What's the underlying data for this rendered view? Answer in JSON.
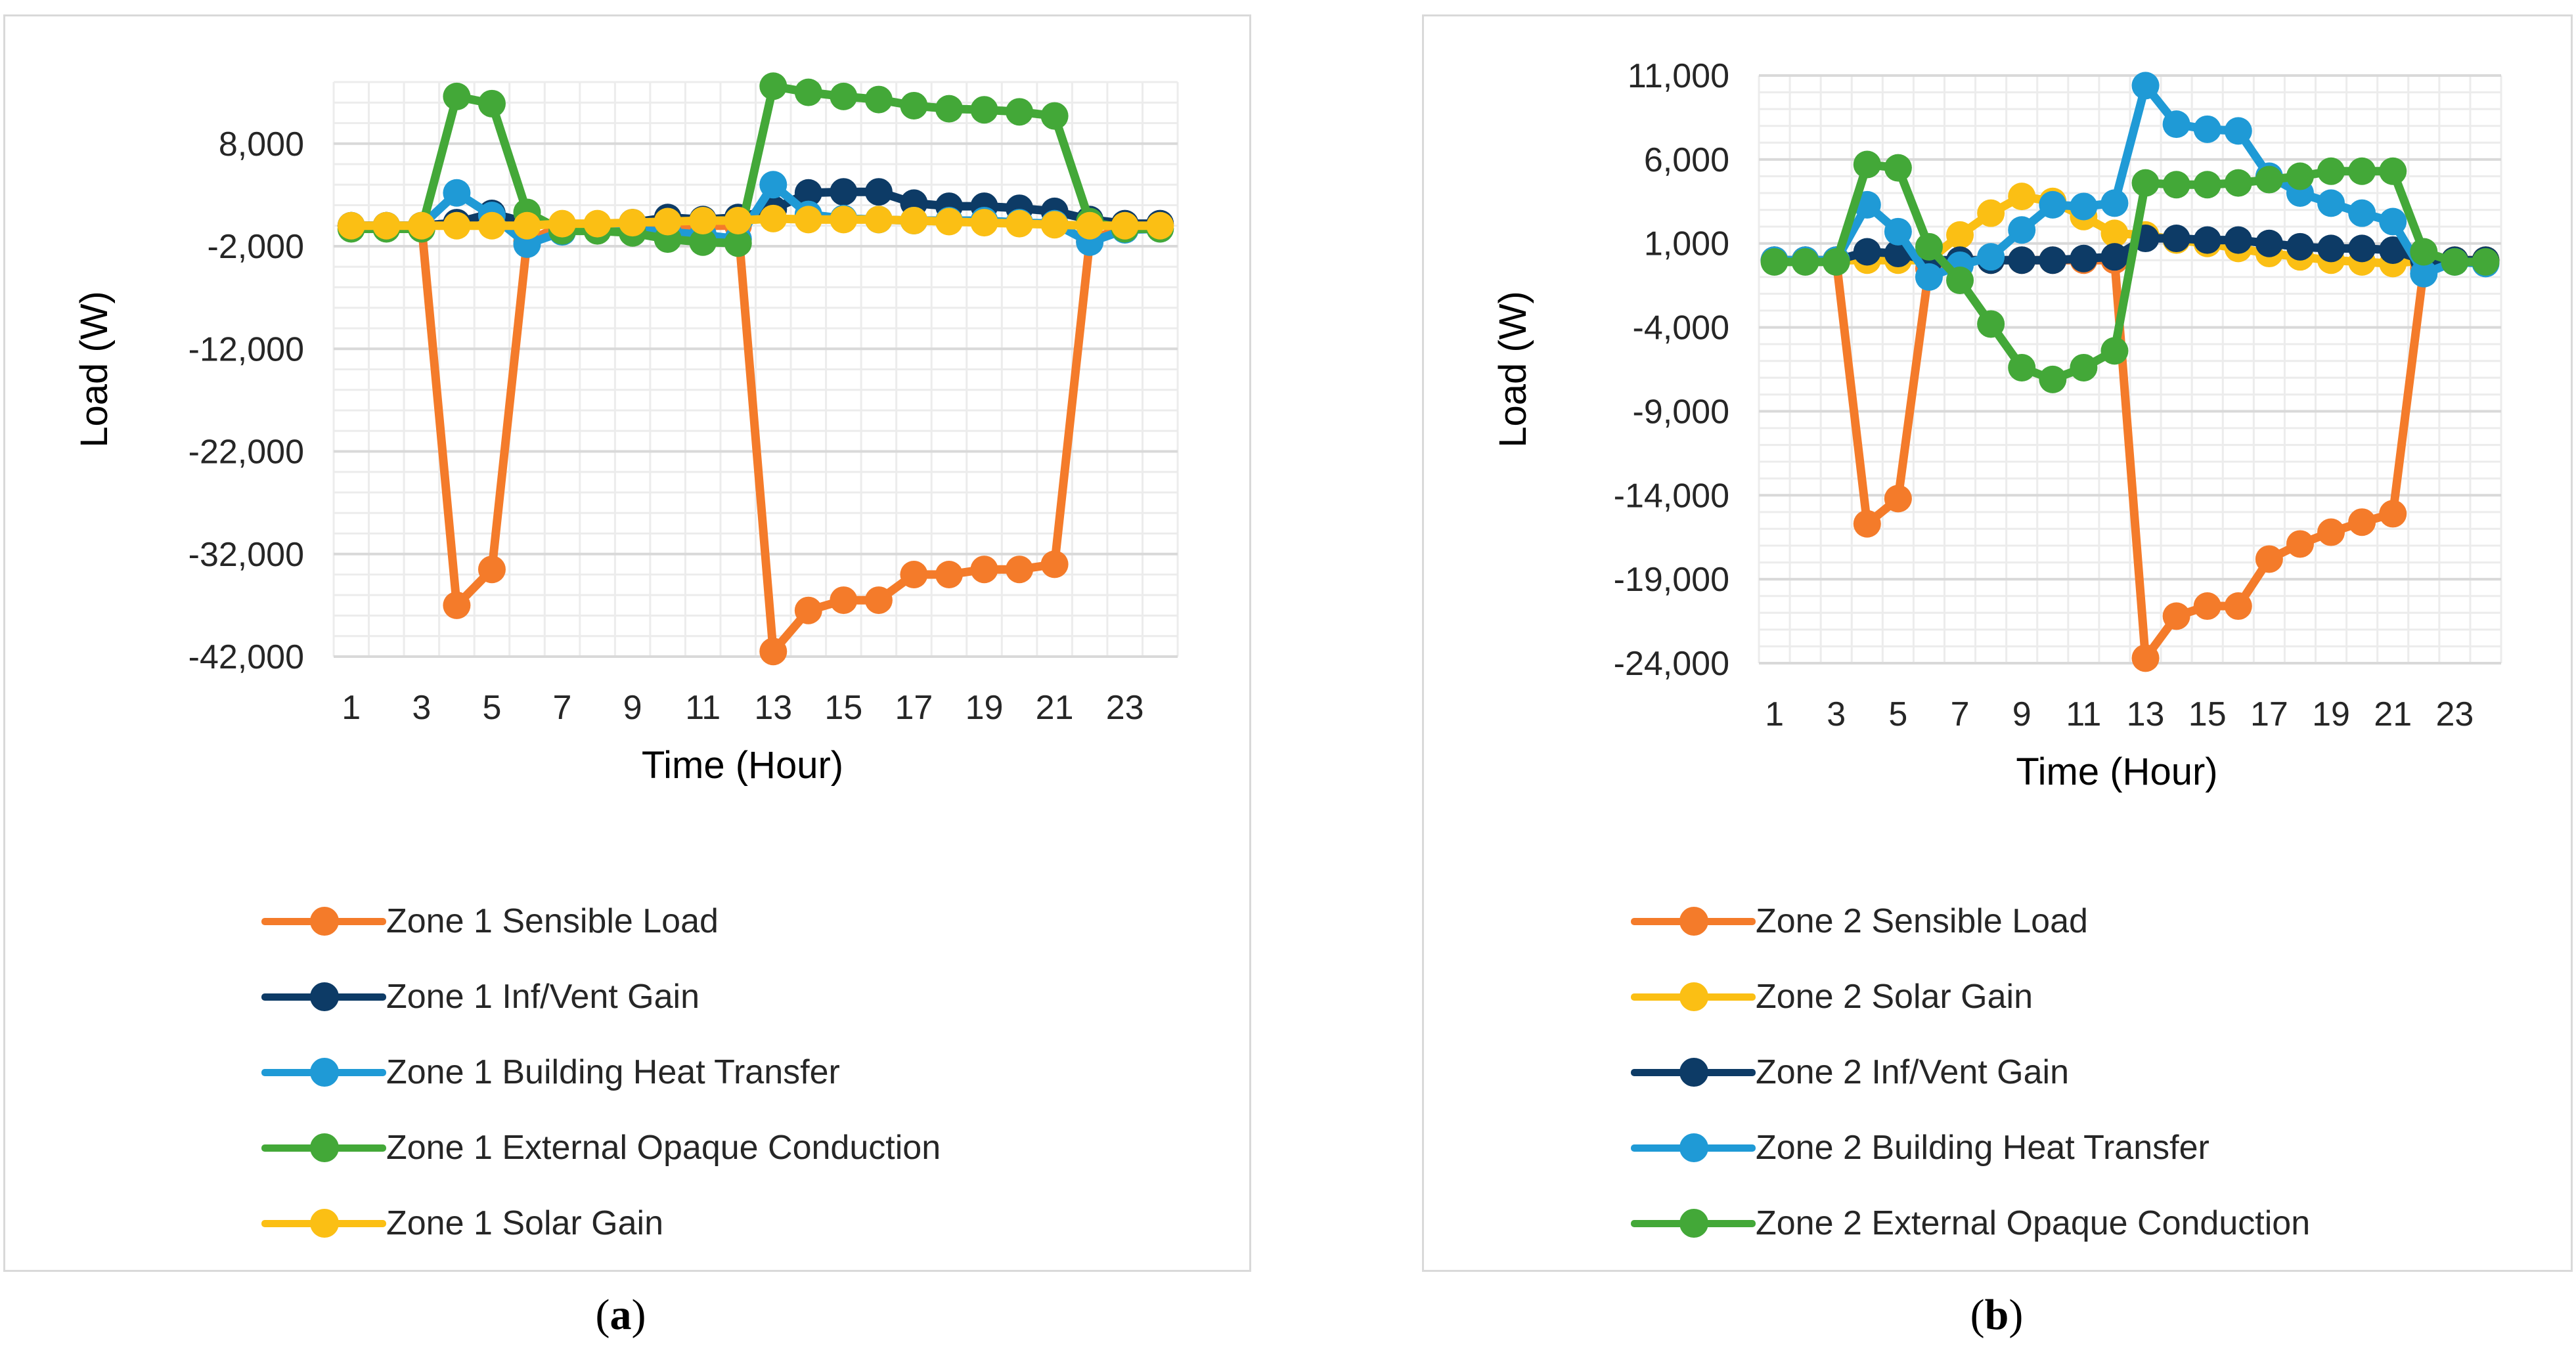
{
  "chart_data": [
    {
      "type": "line",
      "panel": "a",
      "caption_letter": "a",
      "xlabel": "Time (Hour)",
      "ylabel": "Load (W)",
      "ylim": [
        -42000,
        14000
      ],
      "yticks": [
        8000,
        -2000,
        -12000,
        -22000,
        -32000,
        -42000
      ],
      "ytick_labels": [
        "8,000",
        "-2,000",
        "-12,000",
        "-22,000",
        "-32,000",
        "-42,000"
      ],
      "x": [
        1,
        2,
        3,
        4,
        5,
        6,
        7,
        8,
        9,
        10,
        11,
        12,
        13,
        14,
        15,
        16,
        17,
        18,
        19,
        20,
        21,
        22,
        23,
        24
      ],
      "xtick_labels": [
        "1",
        "3",
        "5",
        "7",
        "9",
        "11",
        "13",
        "15",
        "17",
        "19",
        "21",
        "23"
      ],
      "series": [
        {
          "name": "Zone 1 Sensible Load",
          "color": "#f47b2a",
          "values": [
            0,
            0,
            0,
            -37000,
            -33500,
            -1500,
            0,
            0,
            0,
            0,
            0,
            0,
            -41500,
            -37500,
            -36500,
            -36500,
            -34000,
            -34000,
            -33500,
            -33500,
            -33000,
            -1500,
            0,
            0
          ]
        },
        {
          "name": "Zone 1 Inf/Vent Gain",
          "color": "#0d3b66",
          "values": [
            0,
            0,
            0,
            300,
            1200,
            300,
            0,
            0,
            300,
            800,
            600,
            800,
            1600,
            3200,
            3300,
            3300,
            2200,
            1900,
            1900,
            1700,
            1400,
            600,
            200,
            200
          ]
        },
        {
          "name": "Zone 1 Building Heat Transfer",
          "color": "#1f9ad6",
          "values": [
            0,
            0,
            0,
            3200,
            1000,
            -1800,
            -600,
            -200,
            -400,
            -600,
            -900,
            -1300,
            4000,
            1100,
            700,
            600,
            500,
            500,
            500,
            300,
            200,
            -1600,
            -400,
            -300
          ]
        },
        {
          "name": "Zone 1 External Opaque Conduction",
          "color": "#43a838",
          "values": [
            -300,
            -300,
            -300,
            12600,
            11900,
            1300,
            -500,
            -500,
            -700,
            -1300,
            -1600,
            -1700,
            13600,
            13000,
            12600,
            12300,
            11700,
            11400,
            11300,
            11100,
            10700,
            400,
            -300,
            -300
          ]
        },
        {
          "name": "Zone 1 Solar Gain",
          "color": "#fbbf14",
          "values": [
            0,
            0,
            0,
            0,
            0,
            0,
            200,
            200,
            300,
            400,
            500,
            500,
            700,
            600,
            600,
            600,
            500,
            400,
            300,
            200,
            100,
            0,
            0,
            0
          ]
        }
      ]
    },
    {
      "type": "line",
      "panel": "b",
      "caption_letter": "b",
      "xlabel": "Time (Hour)",
      "ylabel": "Load (W)",
      "ylim": [
        -24000,
        11000
      ],
      "yticks": [
        11000,
        6000,
        1000,
        -4000,
        -9000,
        -14000,
        -19000,
        -24000
      ],
      "ytick_labels": [
        "11,000",
        "6,000",
        "1,000",
        "-4,000",
        "-9,000",
        "-14,000",
        "-19,000",
        "-24,000"
      ],
      "x": [
        1,
        2,
        3,
        4,
        5,
        6,
        7,
        8,
        9,
        10,
        11,
        12,
        13,
        14,
        15,
        16,
        17,
        18,
        19,
        20,
        21,
        22,
        23,
        24
      ],
      "xtick_labels": [
        "1",
        "3",
        "5",
        "7",
        "9",
        "11",
        "13",
        "15",
        "17",
        "19",
        "21",
        "23"
      ],
      "series": [
        {
          "name": "Zone 2 Sensible Load",
          "color": "#f47b2a",
          "values": [
            0,
            0,
            0,
            -15700,
            -14200,
            -500,
            0,
            0,
            0,
            0,
            0,
            0,
            -23700,
            -21200,
            -20600,
            -20600,
            -17800,
            -16900,
            -16200,
            -15600,
            -15100,
            -500,
            0,
            0
          ]
        },
        {
          "name": "Zone 2 Solar Gain",
          "color": "#fbbf14",
          "values": [
            0,
            0,
            0,
            0,
            0,
            0,
            1500,
            2800,
            3800,
            3500,
            2600,
            1600,
            1500,
            1200,
            1000,
            700,
            400,
            200,
            0,
            -100,
            -200,
            0,
            0,
            0
          ]
        },
        {
          "name": "Zone 2 Inf/Vent Gain",
          "color": "#0d3b66",
          "values": [
            0,
            0,
            0,
            500,
            400,
            0,
            0,
            0,
            0,
            0,
            100,
            200,
            1300,
            1300,
            1200,
            1200,
            1000,
            800,
            700,
            700,
            600,
            0,
            0,
            0
          ]
        },
        {
          "name": "Zone 2 Building Heat Transfer",
          "color": "#1f9ad6",
          "values": [
            0,
            0,
            0,
            3300,
            1700,
            -1000,
            -300,
            200,
            1800,
            3300,
            3200,
            3400,
            10400,
            8100,
            7800,
            7700,
            5000,
            4000,
            3400,
            2800,
            2300,
            -800,
            -100,
            -200
          ]
        },
        {
          "name": "Zone 2 External Opaque Conduction",
          "color": "#43a838",
          "values": [
            -100,
            -100,
            -100,
            5700,
            5500,
            800,
            -1200,
            -3800,
            -6400,
            -7100,
            -6400,
            -5400,
            4600,
            4500,
            4500,
            4600,
            4800,
            5000,
            5300,
            5300,
            5300,
            500,
            -100,
            -100
          ]
        }
      ]
    }
  ]
}
